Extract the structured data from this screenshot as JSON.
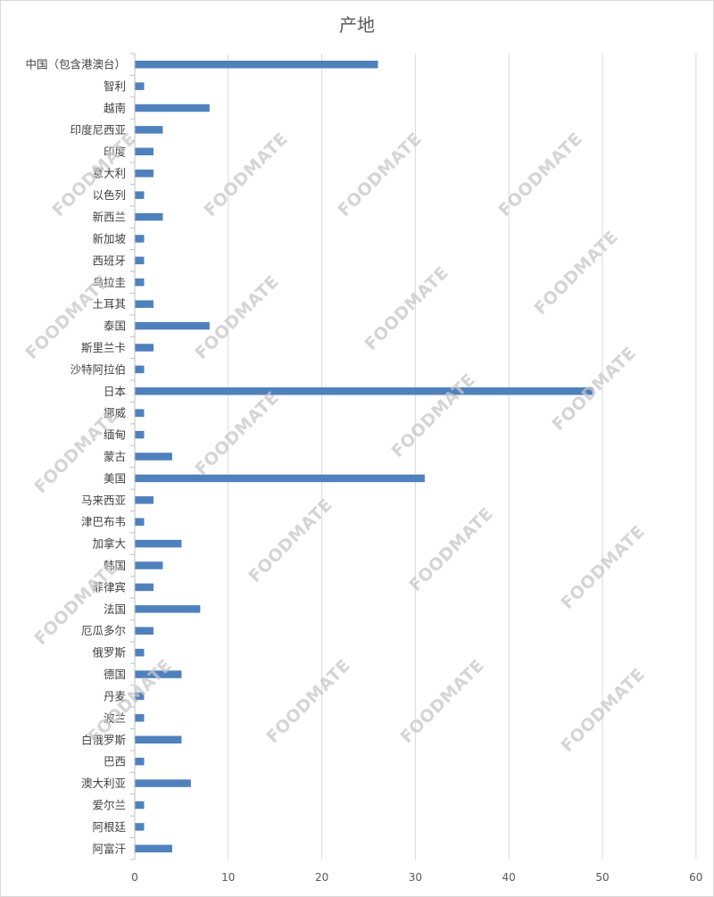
{
  "watermark": "FOODMATE",
  "colors": {
    "bar": "#4f81bd",
    "grid": "#d9d9d9",
    "axis": "#bfbfbf",
    "text": "#404040"
  },
  "chart_data": {
    "type": "bar",
    "orientation": "horizontal",
    "title": "产地",
    "xlabel": "",
    "ylabel": "",
    "xlim": [
      0,
      60
    ],
    "x_ticks": [
      0,
      10,
      20,
      30,
      40,
      50,
      60
    ],
    "grid": true,
    "legend": "none",
    "categories": [
      "中国（包含港澳台）",
      "智利",
      "越南",
      "印度尼西亚",
      "印度",
      "意大利",
      "以色列",
      "新西兰",
      "新加坡",
      "西班牙",
      "乌拉圭",
      "土耳其",
      "泰国",
      "斯里兰卡",
      "沙特阿拉伯",
      "日本",
      "挪威",
      "缅甸",
      "蒙古",
      "美国",
      "马来西亚",
      "津巴布韦",
      "加拿大",
      "韩国",
      "菲律宾",
      "法国",
      "厄瓜多尔",
      "俄罗斯",
      "德国",
      "丹麦",
      "波兰",
      "白俄罗斯",
      "巴西",
      "澳大利亚",
      "爱尔兰",
      "阿根廷",
      "阿富汗"
    ],
    "values": [
      26,
      1,
      8,
      3,
      2,
      2,
      1,
      3,
      1,
      1,
      1,
      2,
      8,
      2,
      1,
      49,
      1,
      1,
      4,
      31,
      2,
      1,
      5,
      3,
      2,
      7,
      2,
      1,
      5,
      1,
      1,
      5,
      1,
      6,
      1,
      1,
      4
    ]
  }
}
